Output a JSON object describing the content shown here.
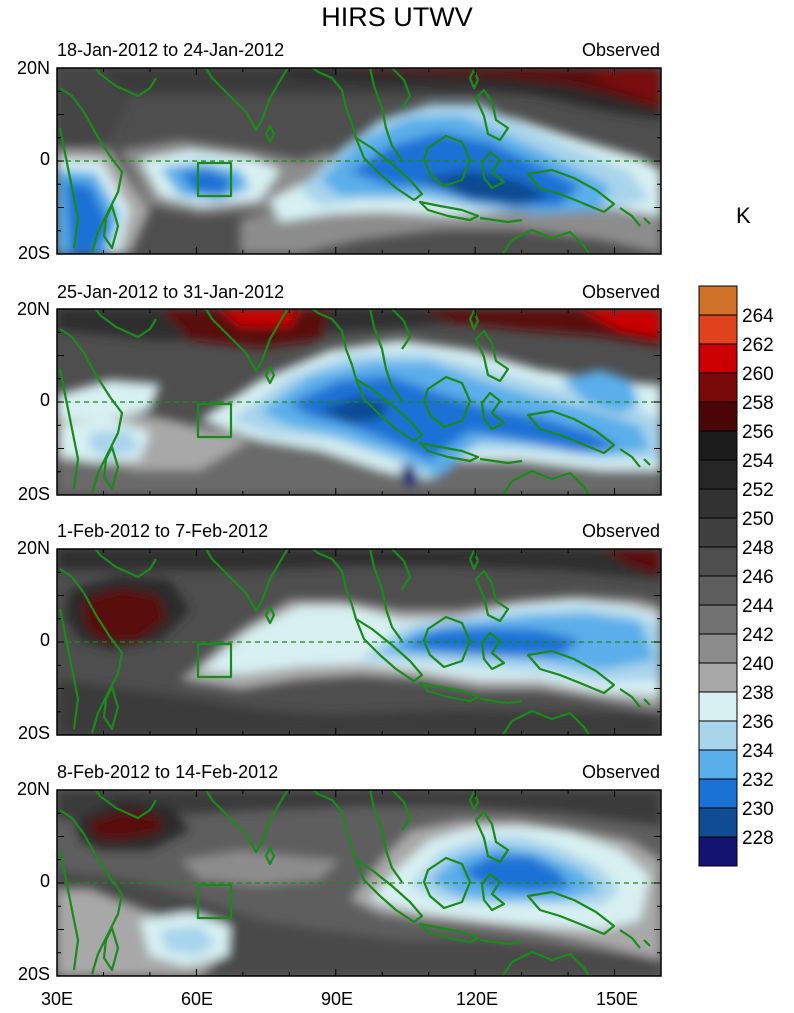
{
  "title": "HIRS UTWV",
  "panels": [
    {
      "date_range": "18-Jan-2012 to 24-Jan-2012",
      "label": "Observed"
    },
    {
      "date_range": "25-Jan-2012 to 31-Jan-2012",
      "label": "Observed"
    },
    {
      "date_range": "1-Feb-2012 to 7-Feb-2012",
      "label": "Observed"
    },
    {
      "date_range": "8-Feb-2012 to 14-Feb-2012",
      "label": "Observed"
    }
  ],
  "lat_labels": [
    "20N",
    "0",
    "20S"
  ],
  "lon_labels": [
    "30E",
    "60E",
    "90E",
    "120E",
    "150E"
  ],
  "colorbar": {
    "units": "K",
    "labels": [
      "264",
      "262",
      "260",
      "258",
      "256",
      "254",
      "252",
      "250",
      "248",
      "246",
      "244",
      "242",
      "240",
      "238",
      "236",
      "234",
      "232",
      "230",
      "228"
    ],
    "colors": [
      "#d0712a",
      "#e0421e",
      "#cc0000",
      "#7a0a0a",
      "#4a0606",
      "#1c1c1c",
      "#262626",
      "#323232",
      "#404040",
      "#4e4e4e",
      "#5e5e5e",
      "#727272",
      "#8c8c8c",
      "#a8a8a8",
      "#d8f0f2",
      "#a8d4ec",
      "#5aaeea",
      "#1a72d4",
      "#104c94",
      "#141470"
    ]
  },
  "map": {
    "coastline_color": "#1a8a1a",
    "equator_style": "dashed"
  }
}
